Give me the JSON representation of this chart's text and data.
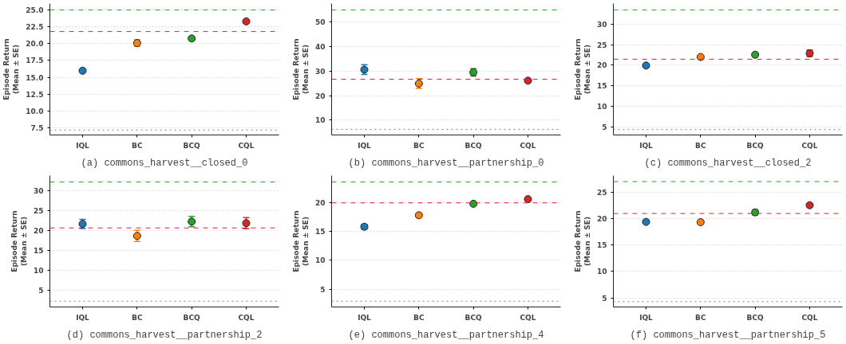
{
  "chart_data": [
    {
      "type": "scatter",
      "title": "(a) commons_harvest__closed_0",
      "ylabel": "Episode Return\n(Mean ± SE)",
      "categories": [
        "IQL",
        "BC",
        "BCQ",
        "CQL"
      ],
      "values": [
        15.97,
        20.08,
        20.76,
        23.29
      ],
      "errors": [
        0.2,
        0.5,
        0.25,
        0.2
      ],
      "colors": [
        "#1f77b4",
        "#ff7f0e",
        "#2ca02c",
        "#d62728"
      ],
      "marker": "circle",
      "ylim": [
        6.43,
        25.94
      ],
      "yticks": [
        7.5,
        {
          "value": 10,
          "label": "10.0"
        },
        12.5,
        {
          "value": 15,
          "label": "15.0"
        },
        17.5,
        {
          "value": 20,
          "label": "20.0"
        },
        22.5,
        {
          "value": 25,
          "label": "25.0"
        }
      ],
      "grid": "y",
      "ref_lines": [
        {
          "axis": "y",
          "value": 25.0,
          "color": "#2ca02c",
          "line_style": "dashed"
        },
        {
          "axis": "y",
          "value": 21.79,
          "color": "#e8174a",
          "line_style": "dashed"
        },
        {
          "axis": "y",
          "value": 7.16,
          "color": "#808080",
          "line_style": "dotted"
        }
      ]
    },
    {
      "type": "scatter",
      "title": "(b) commons_harvest__partnership_0",
      "ylabel": "Episode Return\n(Mean ± SE)",
      "categories": [
        "IQL",
        "BC",
        "BCQ",
        "CQL"
      ],
      "values": [
        30.6,
        24.9,
        29.5,
        26.1
      ],
      "errors": [
        2.0,
        2.0,
        1.5,
        0.5
      ],
      "colors": [
        "#1f77b4",
        "#ff7f0e",
        "#2ca02c",
        "#d62728"
      ],
      "marker": "circle",
      "ylim": [
        3.9,
        57.6
      ],
      "yticks": [
        10,
        20,
        30,
        40,
        50
      ],
      "grid": "y",
      "ref_lines": [
        {
          "axis": "y",
          "value": 55.0,
          "color": "#2ca02c",
          "line_style": "dashed"
        },
        {
          "axis": "y",
          "value": 26.7,
          "color": "#e8174a",
          "line_style": "dashed"
        },
        {
          "axis": "y",
          "value": 6.2,
          "color": "#808080",
          "line_style": "dotted"
        }
      ]
    },
    {
      "type": "scatter",
      "title": "(c) commons_harvest__closed_2",
      "ylabel": "Episode Return\n(Mean ± SE)",
      "categories": [
        "IQL",
        "BC",
        "BCQ",
        "CQL"
      ],
      "values": [
        19.92,
        22.0,
        22.56,
        22.9
      ],
      "errors": [
        0.3,
        0.3,
        0.3,
        0.8
      ],
      "colors": [
        "#1f77b4",
        "#ff7f0e",
        "#2ca02c",
        "#d62728"
      ],
      "marker": "circle",
      "ylim": [
        2.97,
        35.04
      ],
      "yticks": [
        5,
        10,
        15,
        20,
        25,
        30
      ],
      "grid": "y",
      "ref_lines": [
        {
          "axis": "y",
          "value": 33.5,
          "color": "#2ca02c",
          "line_style": "dashed"
        },
        {
          "axis": "y",
          "value": 21.46,
          "color": "#e8174a",
          "line_style": "dashed"
        },
        {
          "axis": "y",
          "value": 4.3,
          "color": "#808080",
          "line_style": "dotted"
        }
      ]
    },
    {
      "type": "scatter",
      "title": "(d) commons_harvest__partnership_2",
      "ylabel": "Episode Return\n(Mean ± SE)",
      "categories": [
        "IQL",
        "BC",
        "BCQ",
        "CQL"
      ],
      "values": [
        21.6,
        18.6,
        22.2,
        21.8
      ],
      "errors": [
        1.15,
        1.4,
        1.3,
        1.4
      ],
      "colors": [
        "#1f77b4",
        "#ff7f0e",
        "#2ca02c",
        "#d62728"
      ],
      "marker": "circle",
      "ylim": [
        0.83,
        33.7
      ],
      "yticks": [
        5,
        10,
        15,
        20,
        25,
        30
      ],
      "grid": "y",
      "ref_lines": [
        {
          "axis": "y",
          "value": 32.1,
          "color": "#2ca02c",
          "line_style": "dashed"
        },
        {
          "axis": "y",
          "value": 20.6,
          "color": "#e8174a",
          "line_style": "dashed"
        },
        {
          "axis": "y",
          "value": 2.27,
          "color": "#808080",
          "line_style": "dotted"
        }
      ]
    },
    {
      "type": "scatter",
      "title": "(e) commons_harvest__partnership_4",
      "ylabel": "Episode Return\n(Mean ± SE)",
      "categories": [
        "IQL",
        "BC",
        "BCQ",
        "CQL"
      ],
      "values": [
        15.79,
        17.77,
        19.75,
        20.54
      ],
      "errors": [
        0.4,
        0.3,
        0.2,
        0.2
      ],
      "colors": [
        "#1f77b4",
        "#ff7f0e",
        "#2ca02c",
        "#d62728"
      ],
      "marker": "circle",
      "ylim": [
        1.98,
        24.6
      ],
      "yticks": [
        5,
        10,
        15,
        20
      ],
      "grid": "y",
      "ref_lines": [
        {
          "axis": "y",
          "value": 23.5,
          "color": "#2ca02c",
          "line_style": "dashed"
        },
        {
          "axis": "y",
          "value": 19.9,
          "color": "#e8174a",
          "line_style": "dashed"
        },
        {
          "axis": "y",
          "value": 2.97,
          "color": "#808080",
          "line_style": "dotted"
        }
      ]
    },
    {
      "type": "scatter",
      "title": "(f) commons_harvest__partnership_5",
      "ylabel": "Episode Return\n(Mean ± SE)",
      "categories": [
        "IQL",
        "BC",
        "BCQ",
        "CQL"
      ],
      "values": [
        19.35,
        19.3,
        21.15,
        22.5
      ],
      "errors": [
        0.2,
        0.2,
        0.5,
        0.3
      ],
      "colors": [
        "#1f77b4",
        "#ff7f0e",
        "#2ca02c",
        "#d62728"
      ],
      "marker": "circle",
      "ylim": [
        3.28,
        28.1
      ],
      "yticks": [
        5,
        10,
        15,
        20,
        25
      ],
      "grid": "y",
      "ref_lines": [
        {
          "axis": "y",
          "value": 26.96,
          "color": "#2ca02c",
          "line_style": "dashed"
        },
        {
          "axis": "y",
          "value": 20.94,
          "color": "#e8174a",
          "line_style": "dashed"
        },
        {
          "axis": "y",
          "value": 4.29,
          "color": "#808080",
          "line_style": "dotted"
        }
      ]
    }
  ]
}
